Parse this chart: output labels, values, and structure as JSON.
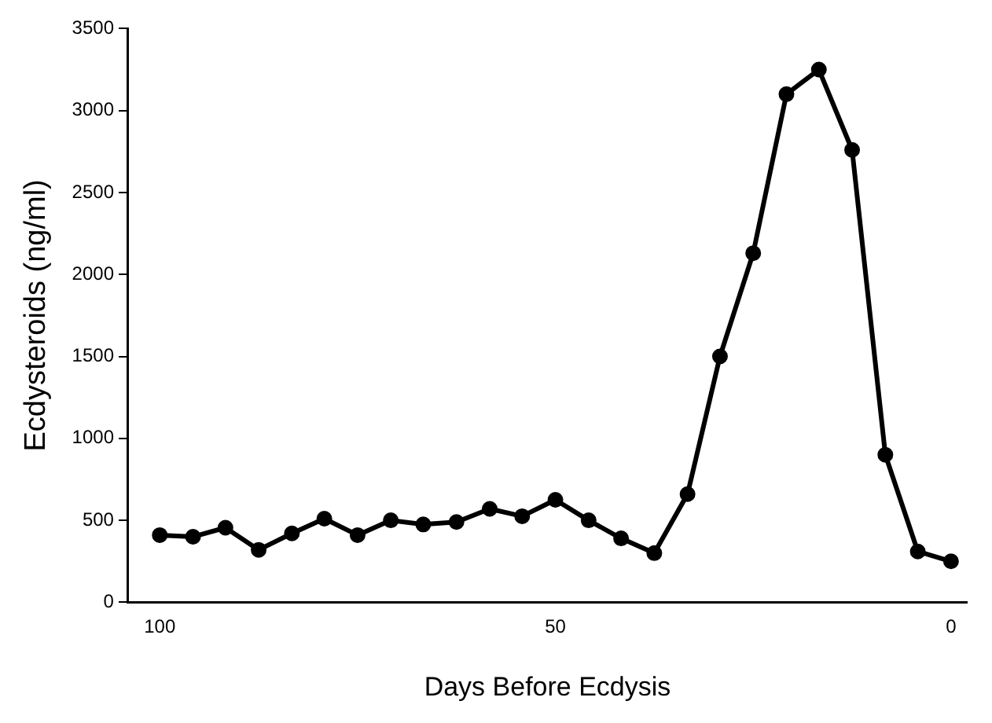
{
  "chart_data": {
    "type": "line",
    "xlabel": "Days Before Ecdysis",
    "ylabel": "Ecdysteroids (ng/ml)",
    "x": [
      100,
      95.8,
      91.7,
      87.5,
      83.3,
      79.2,
      75,
      70.8,
      66.7,
      62.5,
      58.3,
      54.2,
      50,
      45.8,
      41.7,
      37.5,
      33.3,
      29.2,
      25,
      20.8,
      16.7,
      12.5,
      8.3,
      4.2,
      0
    ],
    "series": [
      {
        "color": "#000000",
        "values": [
          410,
          400,
          455,
          320,
          420,
          510,
          410,
          500,
          475,
          490,
          570,
          525,
          625,
          500,
          390,
          300,
          660,
          1500,
          2130,
          3100,
          3250,
          2760,
          900,
          310,
          250
        ]
      }
    ],
    "xlim": [
      104,
      -2
    ],
    "xticks": [
      100,
      50,
      0
    ],
    "ylim": [
      0,
      3500
    ],
    "yticks": [
      0,
      500,
      1000,
      1500,
      2000,
      2500,
      3000,
      3500
    ],
    "grid": false,
    "legend": false,
    "marker": "circle",
    "line_style": "solid"
  }
}
